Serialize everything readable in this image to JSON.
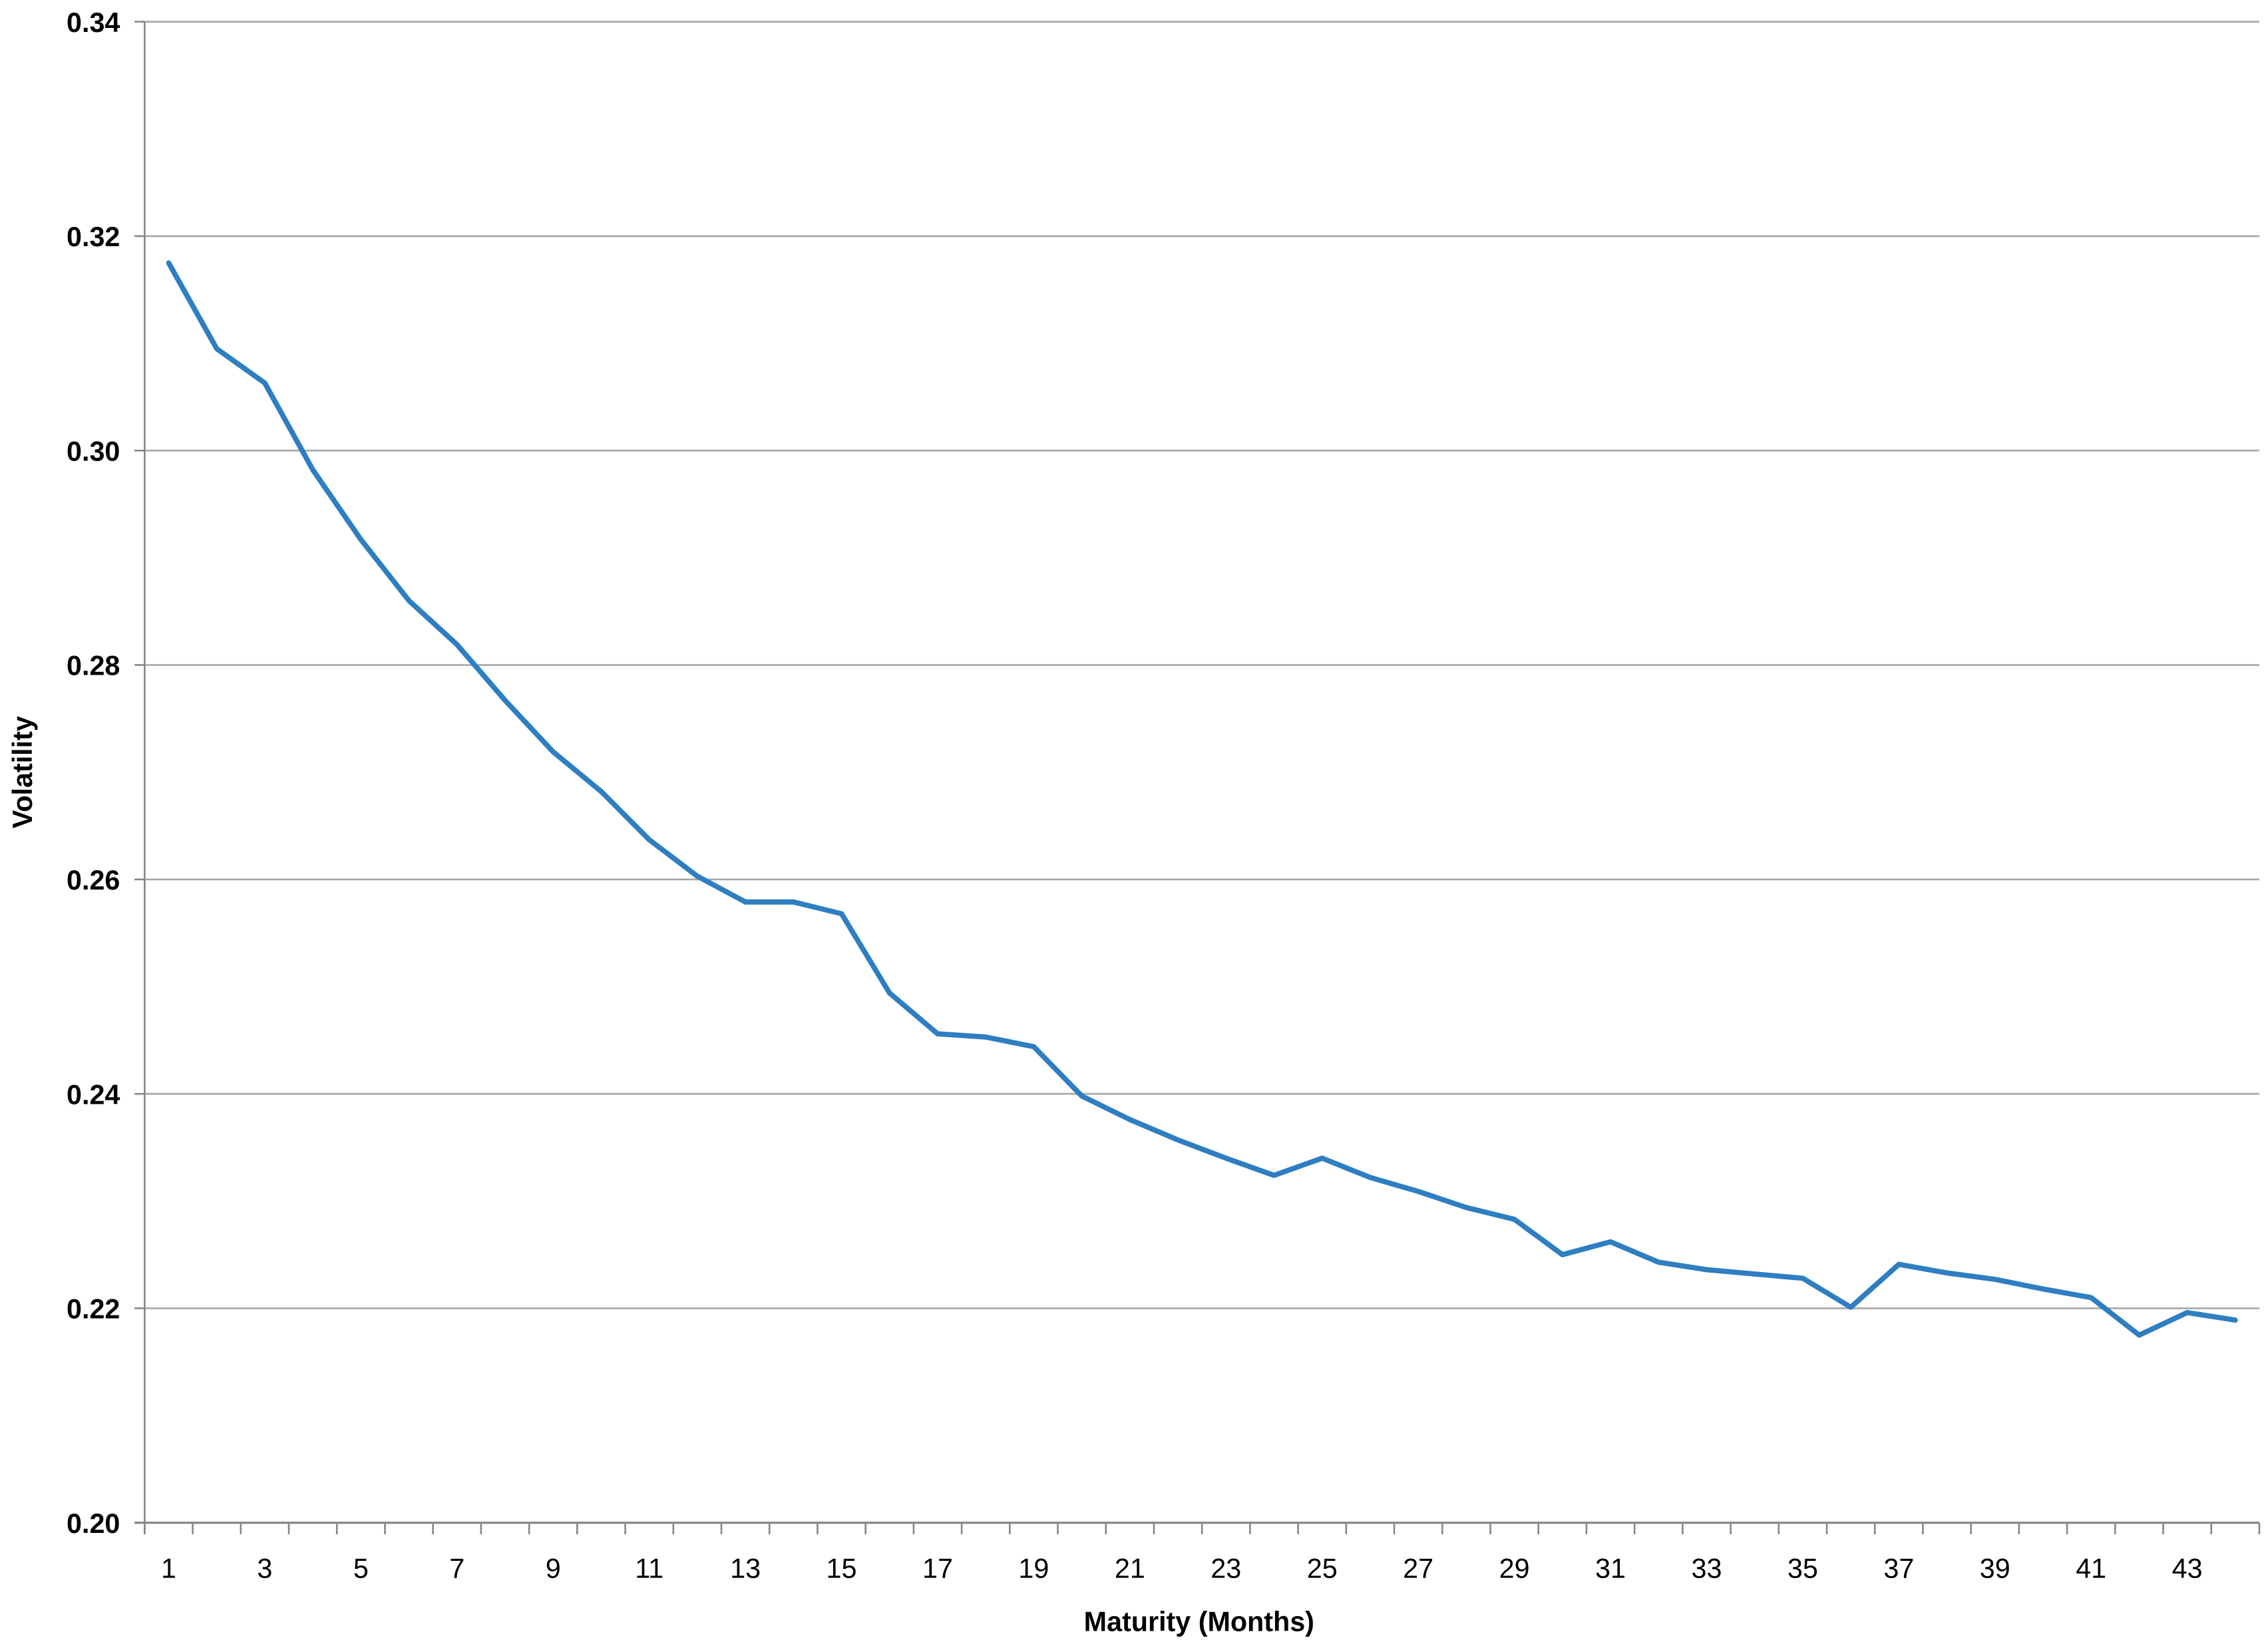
{
  "chart_data": {
    "type": "line",
    "title": "",
    "xlabel": "Maturity (Months)",
    "ylabel": "Volatility",
    "ylim": [
      0.2,
      0.34
    ],
    "yticks": [
      "0.20",
      "0.22",
      "0.24",
      "0.26",
      "0.28",
      "0.30",
      "0.32",
      "0.34"
    ],
    "grid": "horizontal",
    "legend": "none",
    "line_color": "#2E7EC1",
    "x": [
      1,
      2,
      3,
      4,
      5,
      6,
      7,
      8,
      9,
      10,
      11,
      12,
      13,
      14,
      15,
      16,
      17,
      18,
      19,
      20,
      21,
      22,
      23,
      24,
      25,
      26,
      27,
      28,
      29,
      30,
      31,
      32,
      33,
      34,
      35,
      36,
      37,
      38,
      39,
      40,
      41,
      42,
      43,
      44
    ],
    "xtick_labels": [
      "1",
      "3",
      "5",
      "7",
      "9",
      "11",
      "13",
      "15",
      "17",
      "19",
      "21",
      "23",
      "25",
      "27",
      "29",
      "31",
      "33",
      "35",
      "37",
      "39",
      "41",
      "43"
    ],
    "series": [
      {
        "values": [
          0.3175,
          0.3095,
          0.3063,
          0.2982,
          0.2917,
          0.286,
          0.2819,
          0.2767,
          0.2719,
          0.2682,
          0.2637,
          0.2603,
          0.2579,
          0.2579,
          0.2568,
          0.2494,
          0.2456,
          0.2453,
          0.2444,
          0.2398,
          0.2376,
          0.2357,
          0.234,
          0.2324,
          0.234,
          0.2322,
          0.2309,
          0.2294,
          0.2283,
          0.225,
          0.2262,
          0.2243,
          0.2236,
          0.2232,
          0.2228,
          0.2201,
          0.2241,
          0.2233,
          0.2227,
          0.2218,
          0.221,
          0.2175,
          0.2196,
          0.2189
        ]
      }
    ]
  }
}
